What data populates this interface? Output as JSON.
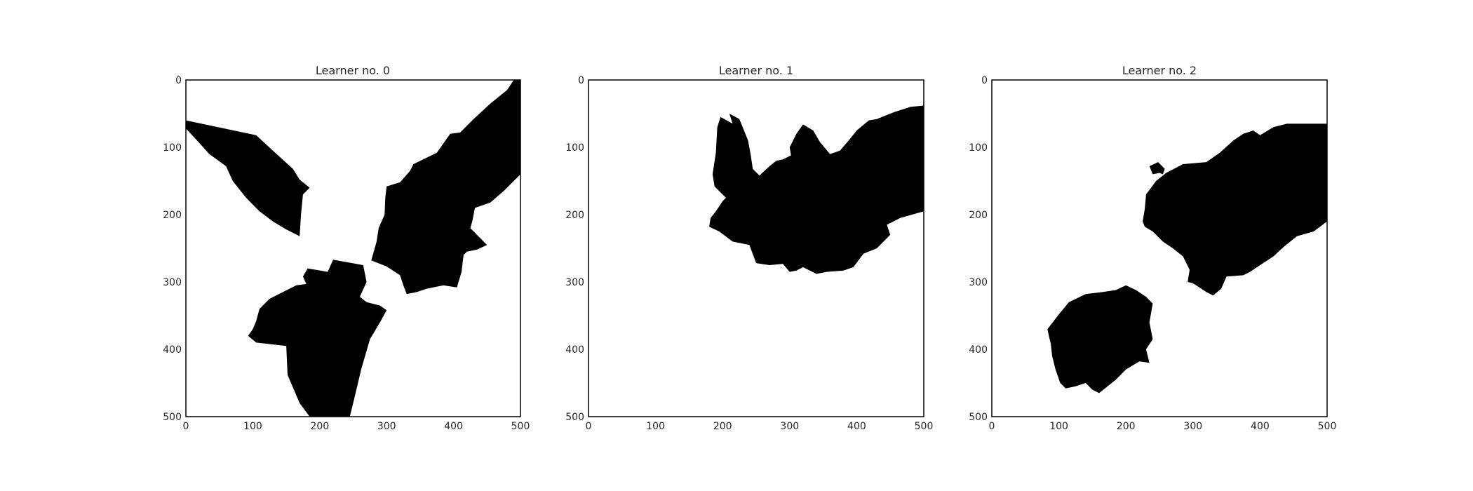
{
  "chart_data": [
    {
      "type": "heatmap",
      "title": "Learner no. 0",
      "xlabel": "",
      "ylabel": "",
      "xlim": [
        0,
        500
      ],
      "ylim": [
        500,
        0
      ],
      "xticks": [
        0,
        100,
        200,
        300,
        400,
        500
      ],
      "yticks": [
        0,
        100,
        200,
        300,
        400,
        500
      ],
      "grid": false,
      "colors": {
        "mask": "#000000",
        "background": "#ffffff"
      },
      "regions": [
        [
          [
            0,
            60
          ],
          [
            105,
            82
          ],
          [
            130,
            105
          ],
          [
            160,
            132
          ],
          [
            170,
            148
          ],
          [
            185,
            160
          ],
          [
            175,
            170
          ],
          [
            172,
            200
          ],
          [
            170,
            232
          ],
          [
            150,
            222
          ],
          [
            130,
            210
          ],
          [
            110,
            195
          ],
          [
            90,
            175
          ],
          [
            70,
            150
          ],
          [
            60,
            128
          ],
          [
            35,
            110
          ],
          [
            15,
            88
          ],
          [
            0,
            72
          ]
        ],
        [
          [
            500,
            0
          ],
          [
            500,
            140
          ],
          [
            475,
            165
          ],
          [
            455,
            182
          ],
          [
            432,
            190
          ],
          [
            428,
            210
          ],
          [
            425,
            220
          ],
          [
            440,
            235
          ],
          [
            450,
            245
          ],
          [
            435,
            252
          ],
          [
            420,
            255
          ],
          [
            415,
            260
          ],
          [
            412,
            285
          ],
          [
            405,
            308
          ],
          [
            385,
            305
          ],
          [
            360,
            310
          ],
          [
            345,
            315
          ],
          [
            330,
            318
          ],
          [
            325,
            305
          ],
          [
            320,
            290
          ],
          [
            300,
            277
          ],
          [
            277,
            268
          ],
          [
            285,
            240
          ],
          [
            288,
            220
          ],
          [
            297,
            200
          ],
          [
            298,
            175
          ],
          [
            300,
            158
          ],
          [
            320,
            152
          ],
          [
            335,
            135
          ],
          [
            340,
            125
          ],
          [
            375,
            108
          ],
          [
            395,
            80
          ],
          [
            410,
            78
          ],
          [
            430,
            58
          ],
          [
            455,
            35
          ],
          [
            480,
            15
          ],
          [
            490,
            0
          ]
        ],
        [
          [
            185,
            500
          ],
          [
            170,
            480
          ],
          [
            152,
            438
          ],
          [
            150,
            395
          ],
          [
            105,
            390
          ],
          [
            93,
            380
          ],
          [
            100,
            370
          ],
          [
            105,
            358
          ],
          [
            110,
            340
          ],
          [
            125,
            325
          ],
          [
            165,
            305
          ],
          [
            180,
            303
          ],
          [
            175,
            292
          ],
          [
            182,
            280
          ],
          [
            195,
            282
          ],
          [
            212,
            285
          ],
          [
            220,
            267
          ],
          [
            265,
            275
          ],
          [
            270,
            300
          ],
          [
            260,
            322
          ],
          [
            270,
            330
          ],
          [
            290,
            335
          ],
          [
            300,
            342
          ],
          [
            290,
            360
          ],
          [
            275,
            385
          ],
          [
            262,
            430
          ],
          [
            250,
            480
          ],
          [
            245,
            500
          ]
        ]
      ]
    },
    {
      "type": "heatmap",
      "title": "Learner no. 1",
      "xlabel": "",
      "ylabel": "",
      "xlim": [
        0,
        500
      ],
      "ylim": [
        500,
        0
      ],
      "xticks": [
        0,
        100,
        200,
        300,
        400,
        500
      ],
      "yticks": [
        0,
        100,
        200,
        300,
        400,
        500
      ],
      "grid": false,
      "colors": {
        "mask": "#000000",
        "background": "#ffffff"
      },
      "regions": [
        [
          [
            500,
            38
          ],
          [
            500,
            195
          ],
          [
            465,
            205
          ],
          [
            445,
            215
          ],
          [
            450,
            230
          ],
          [
            430,
            250
          ],
          [
            410,
            258
          ],
          [
            395,
            278
          ],
          [
            380,
            283
          ],
          [
            355,
            285
          ],
          [
            340,
            288
          ],
          [
            320,
            278
          ],
          [
            310,
            283
          ],
          [
            300,
            285
          ],
          [
            290,
            273
          ],
          [
            270,
            275
          ],
          [
            250,
            272
          ],
          [
            240,
            245
          ],
          [
            215,
            240
          ],
          [
            195,
            225
          ],
          [
            180,
            218
          ],
          [
            182,
            205
          ],
          [
            190,
            195
          ],
          [
            200,
            180
          ],
          [
            205,
            175
          ],
          [
            188,
            158
          ],
          [
            185,
            140
          ],
          [
            190,
            108
          ],
          [
            192,
            70
          ],
          [
            197,
            55
          ],
          [
            215,
            65
          ],
          [
            210,
            50
          ],
          [
            225,
            58
          ],
          [
            238,
            90
          ],
          [
            242,
            112
          ],
          [
            245,
            132
          ],
          [
            255,
            142
          ],
          [
            270,
            128
          ],
          [
            280,
            120
          ],
          [
            290,
            118
          ],
          [
            302,
            112
          ],
          [
            300,
            100
          ],
          [
            310,
            80
          ],
          [
            320,
            66
          ],
          [
            335,
            75
          ],
          [
            345,
            92
          ],
          [
            360,
            110
          ],
          [
            375,
            105
          ],
          [
            388,
            90
          ],
          [
            400,
            75
          ],
          [
            418,
            60
          ],
          [
            430,
            58
          ],
          [
            455,
            48
          ],
          [
            480,
            40
          ]
        ]
      ]
    },
    {
      "type": "heatmap",
      "title": "Learner no. 2",
      "xlabel": "",
      "ylabel": "",
      "xlim": [
        0,
        500
      ],
      "ylim": [
        500,
        0
      ],
      "xticks": [
        0,
        100,
        200,
        300,
        400,
        500
      ],
      "yticks": [
        0,
        100,
        200,
        300,
        400,
        500
      ],
      "grid": false,
      "colors": {
        "mask": "#000000",
        "background": "#ffffff"
      },
      "regions": [
        [
          [
            245,
            150
          ],
          [
            260,
            138
          ],
          [
            285,
            125
          ],
          [
            320,
            122
          ],
          [
            340,
            108
          ],
          [
            360,
            90
          ],
          [
            375,
            80
          ],
          [
            390,
            75
          ],
          [
            400,
            82
          ],
          [
            420,
            70
          ],
          [
            440,
            65
          ],
          [
            470,
            65
          ],
          [
            500,
            65
          ],
          [
            500,
            210
          ],
          [
            480,
            225
          ],
          [
            455,
            232
          ],
          [
            435,
            248
          ],
          [
            420,
            262
          ],
          [
            400,
            275
          ],
          [
            385,
            285
          ],
          [
            375,
            290
          ],
          [
            350,
            292
          ],
          [
            342,
            310
          ],
          [
            330,
            320
          ],
          [
            320,
            315
          ],
          [
            300,
            302
          ],
          [
            292,
            300
          ],
          [
            295,
            282
          ],
          [
            285,
            262
          ],
          [
            270,
            250
          ],
          [
            255,
            240
          ],
          [
            240,
            225
          ],
          [
            228,
            218
          ],
          [
            225,
            210
          ],
          [
            228,
            192
          ],
          [
            230,
            170
          ]
        ],
        [
          [
            235,
            128
          ],
          [
            248,
            122
          ],
          [
            258,
            132
          ],
          [
            255,
            140
          ],
          [
            250,
            138
          ],
          [
            240,
            140
          ]
        ],
        [
          [
            83,
            370
          ],
          [
            100,
            348
          ],
          [
            115,
            330
          ],
          [
            140,
            318
          ],
          [
            165,
            315
          ],
          [
            185,
            312
          ],
          [
            200,
            305
          ],
          [
            215,
            312
          ],
          [
            230,
            322
          ],
          [
            240,
            332
          ],
          [
            235,
            360
          ],
          [
            240,
            385
          ],
          [
            230,
            400
          ],
          [
            235,
            420
          ],
          [
            220,
            418
          ],
          [
            200,
            430
          ],
          [
            185,
            445
          ],
          [
            160,
            465
          ],
          [
            150,
            460
          ],
          [
            140,
            450
          ],
          [
            125,
            455
          ],
          [
            110,
            458
          ],
          [
            102,
            450
          ],
          [
            95,
            430
          ],
          [
            90,
            410
          ],
          [
            88,
            392
          ],
          [
            85,
            380
          ]
        ]
      ]
    }
  ]
}
